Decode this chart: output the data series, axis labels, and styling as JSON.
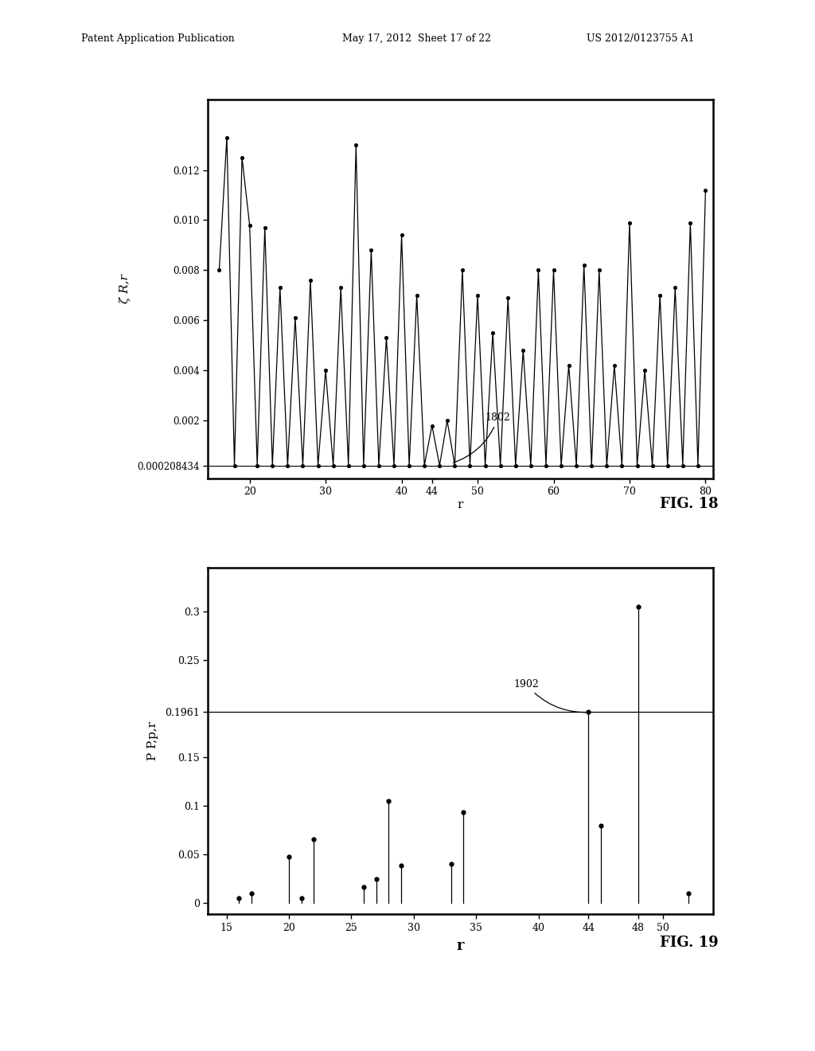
{
  "fig18": {
    "xlabel": "r",
    "ylabel": "ζ R,r",
    "xlim": [
      14.5,
      81
    ],
    "ylim": [
      -0.0003,
      0.0148
    ],
    "xticks": [
      20,
      30,
      40,
      44,
      50,
      60,
      70,
      80
    ],
    "yticks": [
      0.000208434,
      0.002,
      0.004,
      0.006,
      0.008,
      0.01,
      0.012
    ],
    "ytick_labels": [
      "0.000208434",
      "0.002",
      "0.004",
      "0.006",
      "0.008",
      "0.010",
      "0.012"
    ],
    "hline": 0.000208434,
    "data_x": [
      16,
      17,
      18,
      19,
      20,
      21,
      22,
      23,
      24,
      25,
      26,
      27,
      28,
      29,
      30,
      31,
      32,
      33,
      34,
      35,
      36,
      37,
      38,
      39,
      40,
      41,
      42,
      43,
      44,
      45,
      46,
      47,
      48,
      49,
      50,
      51,
      52,
      53,
      54,
      55,
      56,
      57,
      58,
      59,
      60,
      61,
      62,
      63,
      64,
      65,
      66,
      67,
      68,
      69,
      70,
      71,
      72,
      73,
      74,
      75,
      76,
      77,
      78,
      79,
      80
    ],
    "data_y": [
      0.008,
      0.0133,
      0.000208434,
      0.0125,
      0.0098,
      0.000208434,
      0.0097,
      0.000208434,
      0.0073,
      0.000208434,
      0.0061,
      0.000208434,
      0.0076,
      0.000208434,
      0.004,
      0.000208434,
      0.0073,
      0.000208434,
      0.013,
      0.000208434,
      0.0088,
      0.000208434,
      0.0053,
      0.000208434,
      0.0094,
      0.000208434,
      0.007,
      0.000208434,
      0.0018,
      0.000208434,
      0.002,
      0.000208434,
      0.008,
      0.000208434,
      0.007,
      0.000208434,
      0.0055,
      0.000208434,
      0.0069,
      0.000208434,
      0.0048,
      0.000208434,
      0.008,
      0.000208434,
      0.008,
      0.000208434,
      0.0042,
      0.000208434,
      0.0082,
      0.000208434,
      0.008,
      0.000208434,
      0.0042,
      0.000208434,
      0.0099,
      0.000208434,
      0.004,
      0.000208434,
      0.007,
      0.000208434,
      0.0073,
      0.000208434,
      0.0099,
      0.000208434,
      0.0112
    ]
  },
  "fig19": {
    "xlabel": "r",
    "ylabel": "P P,p,r",
    "xlim": [
      13.5,
      54
    ],
    "ylim": [
      -0.012,
      0.345
    ],
    "xticks": [
      15,
      20,
      25,
      30,
      35,
      40,
      44,
      48,
      50
    ],
    "yticks": [
      0,
      0.05,
      0.1,
      0.15,
      0.1961,
      0.25,
      0.3
    ],
    "ytick_labels": [
      "0",
      "0.05",
      "0.1",
      "0.15",
      "0.1961",
      "0.25",
      "0.3"
    ],
    "hline": 0.1961,
    "stem_x": [
      16,
      17,
      20,
      21,
      22,
      26,
      27,
      28,
      29,
      33,
      34,
      44,
      45,
      48,
      52
    ],
    "stem_y": [
      0.005,
      0.01,
      0.047,
      0.005,
      0.065,
      0.016,
      0.024,
      0.105,
      0.038,
      0.04,
      0.093,
      0.1961,
      0.079,
      0.305,
      0.01
    ]
  },
  "header_left": "Patent Application Publication",
  "header_mid": "May 17, 2012  Sheet 17 of 22",
  "header_right": "US 2012/0123755 A1",
  "bg_color": "#ffffff"
}
